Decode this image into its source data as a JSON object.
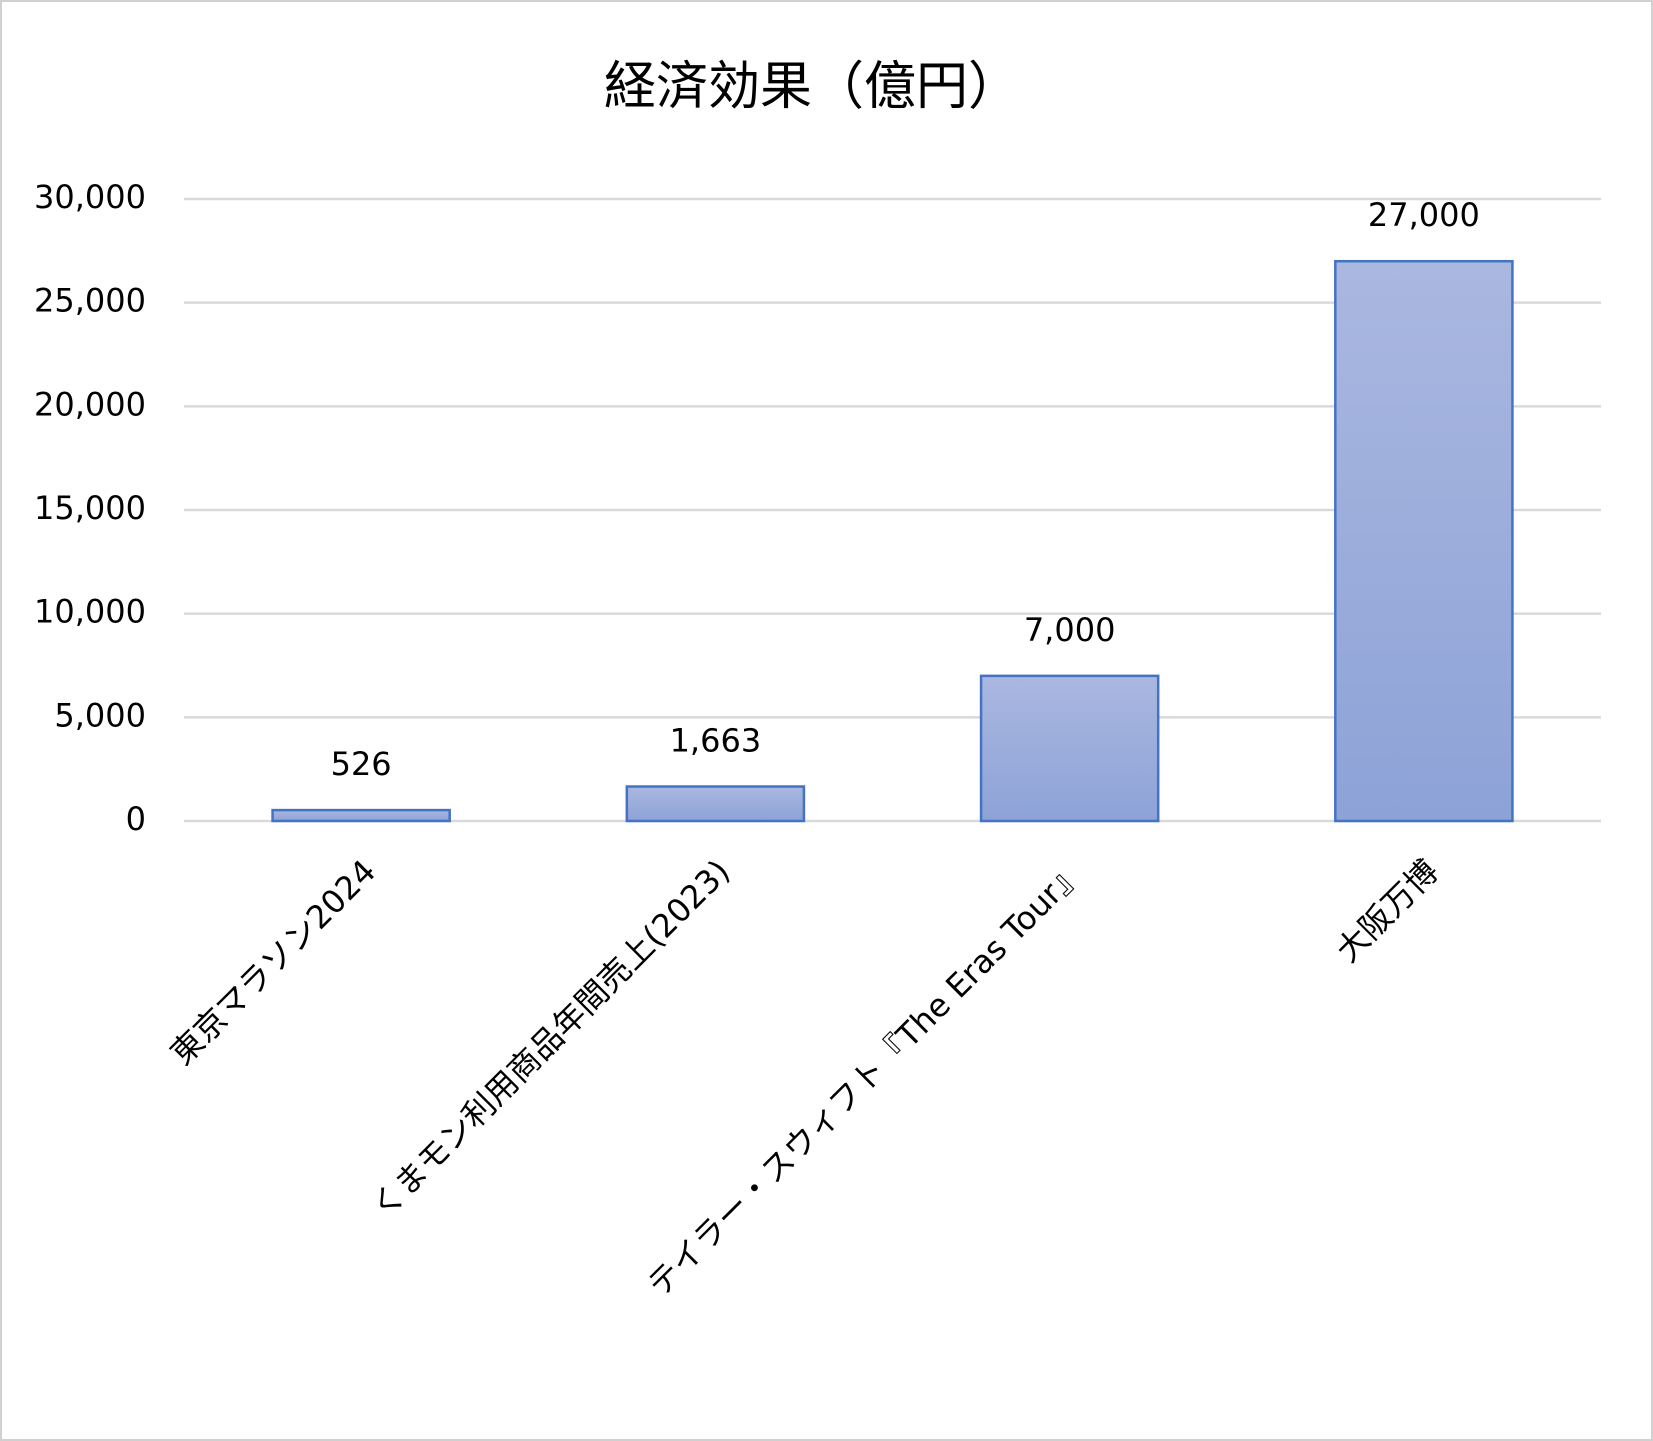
{
  "chart_data": {
    "type": "bar",
    "title": "経済効果（億円）",
    "categories": [
      "東京マラソン2024",
      "くまモン利用商品年間売上(2023)",
      "テイラー・スウィフト『The Eras Tour』",
      "大阪万博"
    ],
    "values": [
      526,
      1663,
      7000,
      27000
    ],
    "value_labels": [
      "526",
      "1,663",
      "7,000",
      "27,000"
    ],
    "color": "#4472c4",
    "ylim": [
      0,
      30000
    ],
    "yticks": [
      0,
      {
        "value": 5000,
        "label": "5,000"
      },
      {
        "value": 10000,
        "label": "10,000"
      },
      {
        "value": 15000,
        "label": "15,000"
      },
      {
        "value": 20000,
        "label": "20,000"
      },
      {
        "value": 25000,
        "label": "25,000"
      },
      {
        "value": 30000,
        "label": "30,000"
      }
    ],
    "grid": true
  }
}
